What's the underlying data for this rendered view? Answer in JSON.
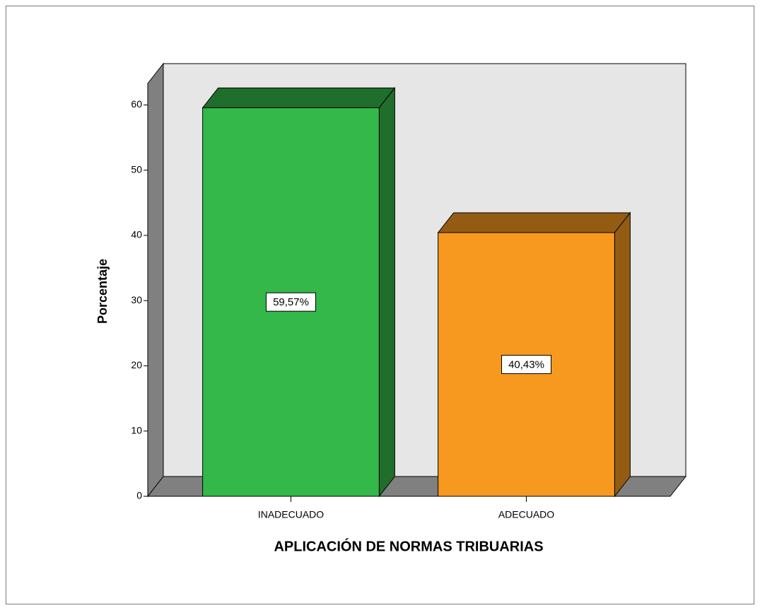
{
  "chart_data": {
    "type": "bar3d",
    "xlabel": "APLICACIÓN DE NORMAS TRIBUARIAS",
    "ylabel": "Porcentaje",
    "categories": [
      "INADECUADO",
      "ADECUADO"
    ],
    "values": [
      59.57,
      40.43
    ],
    "value_labels": [
      "59,57%",
      "40,43%"
    ],
    "colors": [
      "#33b849",
      "#f7991f"
    ],
    "ylim": [
      0,
      63.3
    ],
    "yticks": [
      0,
      10,
      20,
      30,
      40,
      50,
      60
    ]
  }
}
